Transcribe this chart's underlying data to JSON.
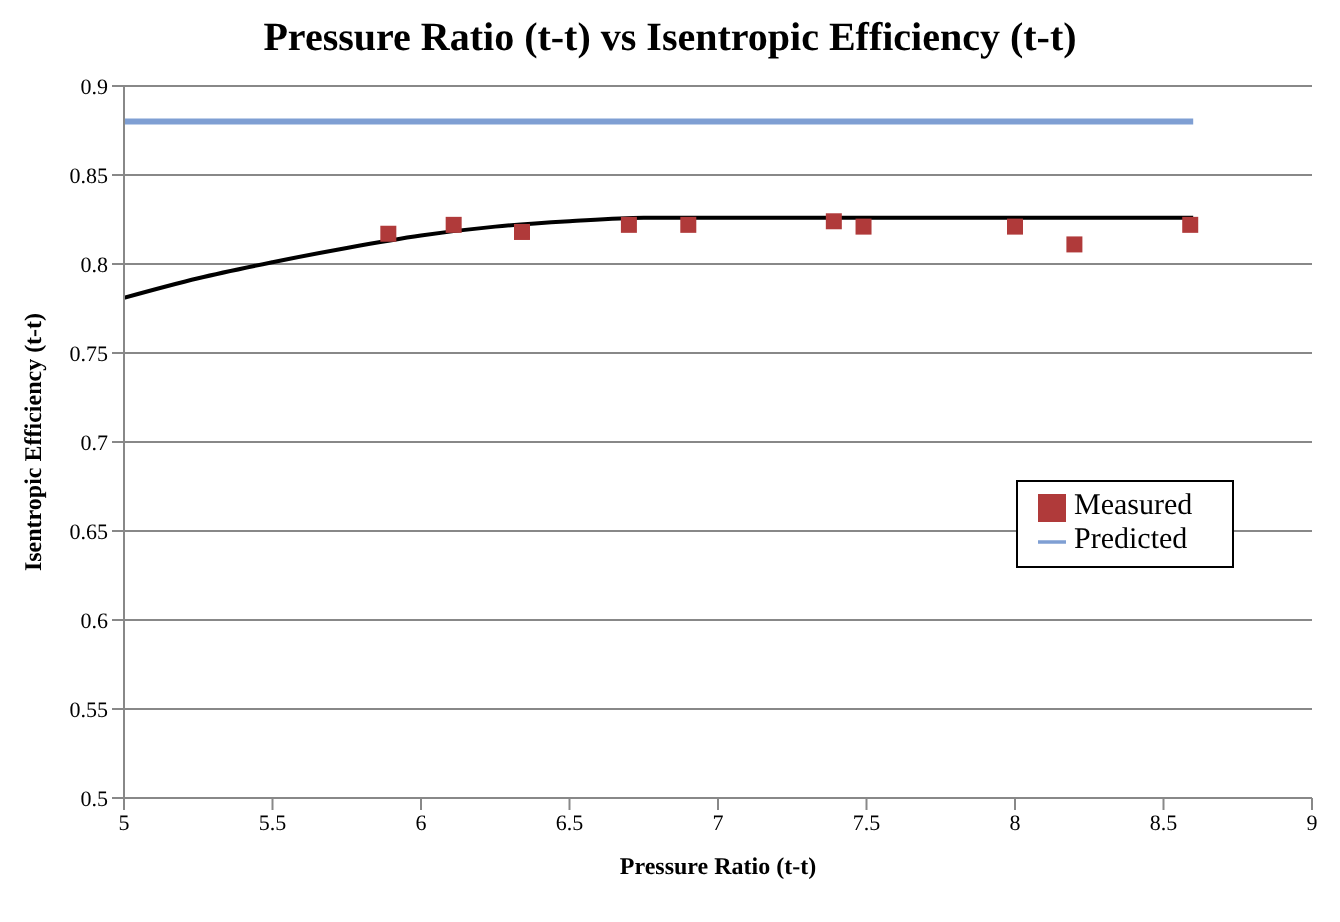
{
  "chart_data": {
    "type": "scatter",
    "title": "Pressure Ratio (t-t) vs Isentropic Efficiency (t-t)",
    "xlabel": "Pressure Ratio (t-t)",
    "ylabel": "Isentropic Efficiency (t-t)",
    "xlim": [
      5,
      9
    ],
    "xticks": [
      5,
      5.5,
      6,
      6.5,
      7,
      7.5,
      8,
      8.5,
      9
    ],
    "ylim": [
      0.5,
      0.9
    ],
    "yticks": [
      0.5,
      0.55,
      0.6,
      0.65,
      0.7,
      0.75,
      0.8,
      0.85,
      0.9
    ],
    "grid": "y",
    "legend": "right",
    "series": [
      {
        "name": "Measured",
        "marker": "square",
        "color": "#b03a3a",
        "x": [
          5.89,
          6.11,
          6.34,
          6.7,
          6.9,
          7.39,
          7.49,
          8.0,
          8.2,
          8.59
        ],
        "values": [
          0.817,
          0.822,
          0.818,
          0.822,
          0.822,
          0.824,
          0.821,
          0.821,
          0.811,
          0.822
        ]
      },
      {
        "name": "Predicted",
        "type": "line",
        "marker": "none",
        "color": "#7f9fd3",
        "x": [
          5,
          8.6
        ],
        "values": [
          0.88,
          0.88
        ]
      },
      {
        "type": "line",
        "marker": "none",
        "color": "#000000",
        "x": [
          5,
          5.25,
          5.5,
          5.75,
          6,
          6.25,
          6.5,
          6.75,
          7,
          8.6
        ],
        "values": [
          0.781,
          0.792,
          0.801,
          0.809,
          0.816,
          0.821,
          0.824,
          0.826,
          0.826,
          0.826
        ]
      }
    ]
  }
}
